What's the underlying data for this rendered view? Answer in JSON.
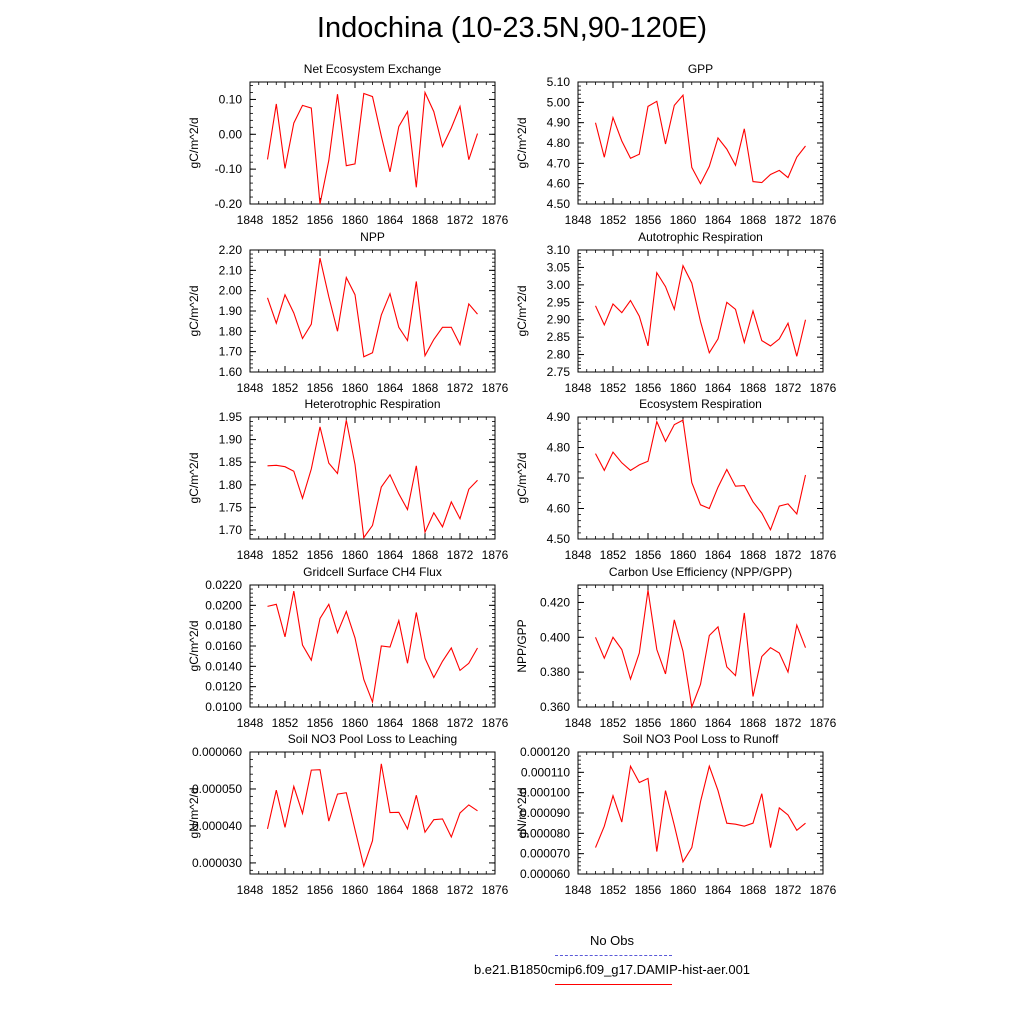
{
  "title": "Indochina (10-23.5N,90-120E)",
  "xticks": [
    "1848",
    "1852",
    "1856",
    "1860",
    "1864",
    "1868",
    "1872",
    "1876"
  ],
  "legend": {
    "items": [
      {
        "label": "No Obs",
        "color": "#5a5ad8",
        "style": "dashed"
      },
      {
        "label": "b.e21.B1850cmip6.f09_g17.DAMIP-hist-aer.001",
        "color": "#ff0000",
        "style": "solid"
      }
    ]
  },
  "chart_data": [
    {
      "type": "line",
      "title": "Net Ecosystem Exchange",
      "ylabel": "gC/m^2/d",
      "xlim": [
        1848,
        1876
      ],
      "ylim": [
        -0.2,
        0.15
      ],
      "yticks": [
        "-0.20",
        "-0.10",
        "0.00",
        "0.10"
      ],
      "ytick_values": [
        -0.2,
        -0.1,
        0.0,
        0.1
      ],
      "x": [
        1850,
        1851,
        1852,
        1853,
        1854,
        1855,
        1856,
        1857,
        1858,
        1859,
        1860,
        1861,
        1862,
        1863,
        1864,
        1865,
        1866,
        1867,
        1868,
        1869,
        1870,
        1871,
        1872,
        1873,
        1874
      ],
      "series": [
        {
          "color": "#ff0000",
          "values": [
            -0.072,
            0.087,
            -0.098,
            0.032,
            0.083,
            0.075,
            -0.2,
            -0.075,
            0.115,
            -0.09,
            -0.085,
            0.117,
            0.108,
            -0.005,
            -0.108,
            0.022,
            0.065,
            -0.152,
            0.12,
            0.065,
            -0.035,
            0.018,
            0.08,
            -0.073,
            0.002
          ]
        }
      ]
    },
    {
      "type": "line",
      "title": "GPP",
      "ylabel": "gC/m^2/d",
      "xlim": [
        1848,
        1876
      ],
      "ylim": [
        4.5,
        5.1
      ],
      "yticks": [
        "4.50",
        "4.60",
        "4.70",
        "4.80",
        "4.90",
        "5.00",
        "5.10"
      ],
      "ytick_values": [
        4.5,
        4.6,
        4.7,
        4.8,
        4.9,
        5.0,
        5.1
      ],
      "x": [
        1850,
        1851,
        1852,
        1853,
        1854,
        1855,
        1856,
        1857,
        1858,
        1859,
        1860,
        1861,
        1862,
        1863,
        1864,
        1865,
        1866,
        1867,
        1868,
        1869,
        1870,
        1871,
        1872,
        1873,
        1874
      ],
      "series": [
        {
          "color": "#ff0000",
          "values": [
            4.9,
            4.73,
            4.925,
            4.81,
            4.725,
            4.745,
            4.98,
            5.005,
            4.795,
            4.985,
            5.035,
            4.68,
            4.6,
            4.685,
            4.825,
            4.77,
            4.69,
            4.87,
            4.61,
            4.605,
            4.645,
            4.665,
            4.63,
            4.73,
            4.785
          ]
        }
      ]
    },
    {
      "type": "line",
      "title": "NPP",
      "ylabel": "gC/m^2/d",
      "xlim": [
        1848,
        1876
      ],
      "ylim": [
        1.6,
        2.2
      ],
      "yticks": [
        "1.60",
        "1.70",
        "1.80",
        "1.90",
        "2.00",
        "2.10",
        "2.20"
      ],
      "ytick_values": [
        1.6,
        1.7,
        1.8,
        1.9,
        2.0,
        2.1,
        2.2
      ],
      "x": [
        1850,
        1851,
        1852,
        1853,
        1854,
        1855,
        1856,
        1857,
        1858,
        1859,
        1860,
        1861,
        1862,
        1863,
        1864,
        1865,
        1866,
        1867,
        1868,
        1869,
        1870,
        1871,
        1872,
        1873,
        1874
      ],
      "series": [
        {
          "color": "#ff0000",
          "values": [
            1.965,
            1.84,
            1.98,
            1.89,
            1.765,
            1.835,
            2.16,
            1.97,
            1.8,
            2.065,
            1.98,
            1.675,
            1.695,
            1.88,
            1.985,
            1.82,
            1.755,
            2.045,
            1.68,
            1.76,
            1.82,
            1.82,
            1.735,
            1.935,
            1.885
          ]
        }
      ]
    },
    {
      "type": "line",
      "title": "Autotrophic Respiration",
      "ylabel": "gC/m^2/d",
      "xlim": [
        1848,
        1876
      ],
      "ylim": [
        2.75,
        3.1
      ],
      "yticks": [
        "2.75",
        "2.80",
        "2.85",
        "2.90",
        "2.95",
        "3.00",
        "3.05",
        "3.10"
      ],
      "ytick_values": [
        2.75,
        2.8,
        2.85,
        2.9,
        2.95,
        3.0,
        3.05,
        3.1
      ],
      "x": [
        1850,
        1851,
        1852,
        1853,
        1854,
        1855,
        1856,
        1857,
        1858,
        1859,
        1860,
        1861,
        1862,
        1863,
        1864,
        1865,
        1866,
        1867,
        1868,
        1869,
        1870,
        1871,
        1872,
        1873,
        1874
      ],
      "series": [
        {
          "color": "#ff0000",
          "values": [
            2.94,
            2.885,
            2.945,
            2.92,
            2.955,
            2.91,
            2.825,
            3.035,
            2.995,
            2.93,
            3.055,
            3.005,
            2.895,
            2.805,
            2.845,
            2.95,
            2.93,
            2.835,
            2.925,
            2.84,
            2.825,
            2.845,
            2.89,
            2.795,
            2.9
          ]
        }
      ]
    },
    {
      "type": "line",
      "title": "Heterotrophic Respiration",
      "ylabel": "gC/m^2/d",
      "xlim": [
        1848,
        1876
      ],
      "ylim": [
        1.68,
        1.95
      ],
      "yticks": [
        "1.70",
        "1.75",
        "1.80",
        "1.85",
        "1.90",
        "1.95"
      ],
      "ytick_values": [
        1.7,
        1.75,
        1.8,
        1.85,
        1.9,
        1.95
      ],
      "x": [
        1850,
        1851,
        1852,
        1853,
        1854,
        1855,
        1856,
        1857,
        1858,
        1859,
        1860,
        1861,
        1862,
        1863,
        1864,
        1865,
        1866,
        1867,
        1868,
        1869,
        1870,
        1871,
        1872,
        1873,
        1874
      ],
      "series": [
        {
          "color": "#ff0000",
          "values": [
            1.842,
            1.843,
            1.84,
            1.83,
            1.77,
            1.835,
            1.928,
            1.848,
            1.825,
            1.943,
            1.845,
            1.683,
            1.71,
            1.795,
            1.822,
            1.78,
            1.745,
            1.842,
            1.695,
            1.738,
            1.707,
            1.762,
            1.725,
            1.79,
            1.81
          ]
        }
      ]
    },
    {
      "type": "line",
      "title": "Ecosystem Respiration",
      "ylabel": "gC/m^2/d",
      "xlim": [
        1848,
        1876
      ],
      "ylim": [
        4.5,
        4.9
      ],
      "yticks": [
        "4.50",
        "4.60",
        "4.70",
        "4.80",
        "4.90"
      ],
      "ytick_values": [
        4.5,
        4.6,
        4.7,
        4.8,
        4.9
      ],
      "x": [
        1850,
        1851,
        1852,
        1853,
        1854,
        1855,
        1856,
        1857,
        1858,
        1859,
        1860,
        1861,
        1862,
        1863,
        1864,
        1865,
        1866,
        1867,
        1868,
        1869,
        1870,
        1871,
        1872,
        1873,
        1874
      ],
      "series": [
        {
          "color": "#ff0000",
          "values": [
            4.78,
            4.725,
            4.785,
            4.75,
            4.725,
            4.743,
            4.755,
            4.885,
            4.82,
            4.875,
            4.89,
            4.685,
            4.612,
            4.6,
            4.67,
            4.728,
            4.673,
            4.675,
            4.622,
            4.585,
            4.53,
            4.608,
            4.615,
            4.582,
            4.71
          ]
        }
      ]
    },
    {
      "type": "line",
      "title": "Gridcell Surface CH4 Flux",
      "ylabel": "gC/m^2/d",
      "xlim": [
        1848,
        1876
      ],
      "ylim": [
        0.01,
        0.022
      ],
      "yticks": [
        "0.0100",
        "0.0120",
        "0.0140",
        "0.0160",
        "0.0180",
        "0.0200",
        "0.0220"
      ],
      "ytick_values": [
        0.01,
        0.012,
        0.014,
        0.016,
        0.018,
        0.02,
        0.022
      ],
      "x": [
        1850,
        1851,
        1852,
        1853,
        1854,
        1855,
        1856,
        1857,
        1858,
        1859,
        1860,
        1861,
        1862,
        1863,
        1864,
        1865,
        1866,
        1867,
        1868,
        1869,
        1870,
        1871,
        1872,
        1873,
        1874
      ],
      "series": [
        {
          "color": "#ff0000",
          "values": [
            0.0199,
            0.0201,
            0.0169,
            0.0214,
            0.0161,
            0.0146,
            0.0187,
            0.0201,
            0.0173,
            0.0194,
            0.0168,
            0.0127,
            0.0105,
            0.016,
            0.0159,
            0.0185,
            0.0143,
            0.0193,
            0.0148,
            0.0129,
            0.0145,
            0.0158,
            0.0136,
            0.0143,
            0.0158
          ]
        }
      ]
    },
    {
      "type": "line",
      "title": "Carbon Use Efficiency (NPP/GPP)",
      "ylabel": "NPP/GPP",
      "xlim": [
        1848,
        1876
      ],
      "ylim": [
        0.36,
        0.43
      ],
      "yticks": [
        "0.360",
        "0.380",
        "0.400",
        "0.420"
      ],
      "ytick_values": [
        0.36,
        0.38,
        0.4,
        0.42
      ],
      "x": [
        1850,
        1851,
        1852,
        1853,
        1854,
        1855,
        1856,
        1857,
        1858,
        1859,
        1860,
        1861,
        1862,
        1863,
        1864,
        1865,
        1866,
        1867,
        1868,
        1869,
        1870,
        1871,
        1872,
        1873,
        1874
      ],
      "series": [
        {
          "color": "#ff0000",
          "values": [
            0.4,
            0.388,
            0.4,
            0.393,
            0.376,
            0.391,
            0.427,
            0.393,
            0.379,
            0.41,
            0.392,
            0.36,
            0.373,
            0.401,
            0.406,
            0.383,
            0.378,
            0.414,
            0.366,
            0.389,
            0.394,
            0.391,
            0.38,
            0.407,
            0.394
          ]
        }
      ]
    },
    {
      "type": "line",
      "title": "Soil NO3 Pool Loss to Leaching",
      "ylabel": "gN/m^2/d",
      "xlim": [
        1848,
        1876
      ],
      "ylim": [
        2.7e-05,
        6e-05
      ],
      "yticks": [
        "0.000030",
        "0.000040",
        "0.000050",
        "0.000060"
      ],
      "ytick_values": [
        3e-05,
        4e-05,
        5e-05,
        6e-05
      ],
      "x": [
        1850,
        1851,
        1852,
        1853,
        1854,
        1855,
        1856,
        1857,
        1858,
        1859,
        1860,
        1861,
        1862,
        1863,
        1864,
        1865,
        1866,
        1867,
        1868,
        1869,
        1870,
        1871,
        1872,
        1873,
        1874
      ],
      "series": [
        {
          "color": "#ff0000",
          "values": [
            3.92e-05,
            4.97e-05,
            3.96e-05,
            5.07e-05,
            4.34e-05,
            5.51e-05,
            5.52e-05,
            4.13e-05,
            4.86e-05,
            4.9e-05,
            3.9e-05,
            2.91e-05,
            3.6e-05,
            5.68e-05,
            4.36e-05,
            4.37e-05,
            3.92e-05,
            4.83e-05,
            3.83e-05,
            4.17e-05,
            4.19e-05,
            3.7e-05,
            4.35e-05,
            4.57e-05,
            4.41e-05
          ]
        }
      ]
    },
    {
      "type": "line",
      "title": "Soil NO3 Pool Loss to Runoff",
      "ylabel": "gN/m^2/d",
      "xlim": [
        1848,
        1876
      ],
      "ylim": [
        6e-05,
        0.00012
      ],
      "yticks": [
        "0.000060",
        "0.000070",
        "0.000080",
        "0.000090",
        "0.000100",
        "0.000110",
        "0.000120"
      ],
      "ytick_values": [
        6e-05,
        7e-05,
        8e-05,
        9e-05,
        0.0001,
        0.00011,
        0.00012
      ],
      "x": [
        1850,
        1851,
        1852,
        1853,
        1854,
        1855,
        1856,
        1857,
        1858,
        1859,
        1860,
        1861,
        1862,
        1863,
        1864,
        1865,
        1866,
        1867,
        1868,
        1869,
        1870,
        1871,
        1872,
        1873,
        1874
      ],
      "series": [
        {
          "color": "#ff0000",
          "values": [
            7.3e-05,
            8.35e-05,
            9.85e-05,
            8.55e-05,
            0.000113,
            0.000105,
            0.000107,
            7.1e-05,
            0.000101,
            8.4e-05,
            6.6e-05,
            7.3e-05,
            9.55e-05,
            0.000113,
            0.000101,
            8.5e-05,
            8.45e-05,
            8.35e-05,
            8.5e-05,
            9.95e-05,
            7.3e-05,
            9.25e-05,
            8.9e-05,
            8.15e-05,
            8.5e-05
          ]
        }
      ]
    }
  ]
}
